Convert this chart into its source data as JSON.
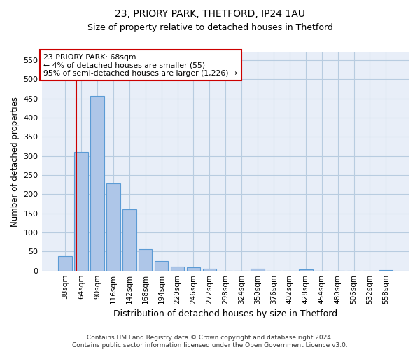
{
  "title1": "23, PRIORY PARK, THETFORD, IP24 1AU",
  "title2": "Size of property relative to detached houses in Thetford",
  "xlabel": "Distribution of detached houses by size in Thetford",
  "ylabel": "Number of detached properties",
  "bins": [
    "38sqm",
    "64sqm",
    "90sqm",
    "116sqm",
    "142sqm",
    "168sqm",
    "194sqm",
    "220sqm",
    "246sqm",
    "272sqm",
    "298sqm",
    "324sqm",
    "350sqm",
    "376sqm",
    "402sqm",
    "428sqm",
    "454sqm",
    "480sqm",
    "506sqm",
    "532sqm",
    "558sqm"
  ],
  "values": [
    38,
    311,
    457,
    228,
    160,
    57,
    25,
    11,
    8,
    5,
    0,
    0,
    5,
    0,
    0,
    3,
    0,
    0,
    0,
    0,
    2
  ],
  "bar_color": "#aec6e8",
  "bar_edge_color": "#5b9bd5",
  "property_line_label": "23 PRIORY PARK: 68sqm",
  "annotation_line1": "← 4% of detached houses are smaller (55)",
  "annotation_line2": "95% of semi-detached houses are larger (1,226) →",
  "vline_color": "#cc0000",
  "annotation_box_edge": "#cc0000",
  "ylim": [
    0,
    570
  ],
  "yticks": [
    0,
    50,
    100,
    150,
    200,
    250,
    300,
    350,
    400,
    450,
    500,
    550
  ],
  "footer1": "Contains HM Land Registry data © Crown copyright and database right 2024.",
  "footer2": "Contains public sector information licensed under the Open Government Licence v3.0.",
  "bg_color": "#e8eef8",
  "grid_color": "#b8cce0",
  "title1_fontsize": 10,
  "title2_fontsize": 9
}
